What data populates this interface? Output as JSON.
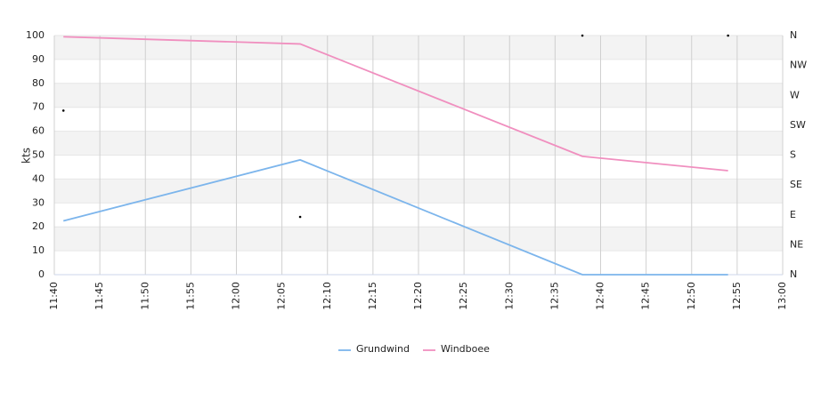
{
  "chart_data": {
    "type": "line",
    "y_label": "kts",
    "xlim": [
      "11:40",
      "13:00"
    ],
    "xticks": [
      "11:40",
      "11:45",
      "11:50",
      "11:55",
      "12:00",
      "12:05",
      "12:10",
      "12:15",
      "12:20",
      "12:25",
      "12:30",
      "12:35",
      "12:40",
      "12:45",
      "12:50",
      "12:55",
      "13:00"
    ],
    "ylim": [
      0,
      100
    ],
    "yticks": [
      0,
      10,
      20,
      30,
      40,
      50,
      60,
      70,
      80,
      90,
      100
    ],
    "y2lim": [
      0,
      360
    ],
    "y2ticks": [
      {
        "value": 0,
        "label": "N"
      },
      {
        "value": 45,
        "label": "NE"
      },
      {
        "value": 90,
        "label": "E"
      },
      {
        "value": 135,
        "label": "SE"
      },
      {
        "value": 180,
        "label": "S"
      },
      {
        "value": 225,
        "label": "SW"
      },
      {
        "value": 270,
        "label": "W"
      },
      {
        "value": 315,
        "label": "NW"
      },
      {
        "value": 360,
        "label": "N"
      }
    ],
    "grid": true,
    "legend": "bottom",
    "x": [
      "11:41",
      "12:07",
      "12:38",
      "12:54"
    ],
    "series": [
      {
        "name": "Grundwind",
        "color": "#7cb5ec",
        "values": [
          22.5,
          48,
          0,
          0
        ]
      },
      {
        "name": "Windboee",
        "color": "#f08fbf",
        "values": [
          99.5,
          96.5,
          49.5,
          43.5
        ]
      },
      {
        "color": "#000000",
        "axis": "y2",
        "values": [
          247,
          87,
          360,
          360
        ]
      }
    ]
  }
}
